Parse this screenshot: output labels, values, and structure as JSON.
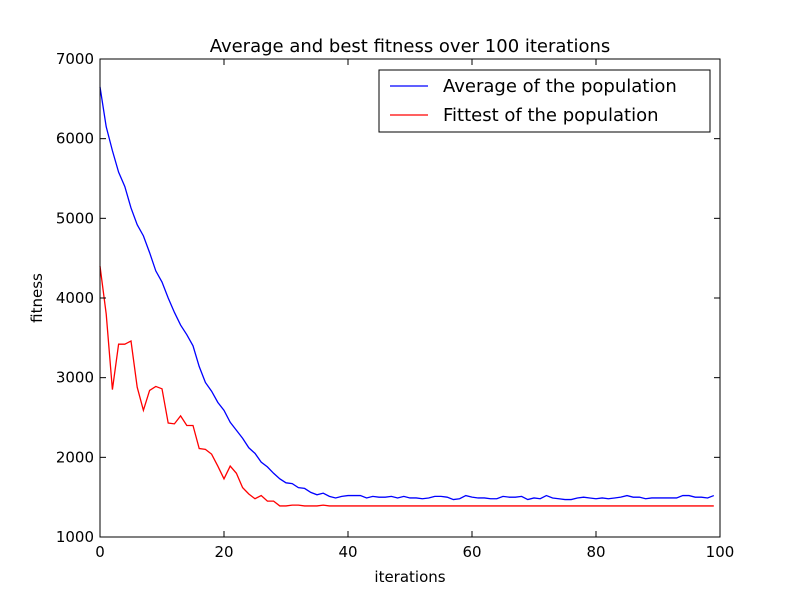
{
  "chart_data": {
    "type": "line",
    "title": "Average and best fitness over 100 iterations",
    "xlabel": "iterations",
    "ylabel": "fitness",
    "xlim": [
      0,
      100
    ],
    "ylim": [
      1000,
      7000
    ],
    "xticks": [
      0,
      20,
      40,
      60,
      80,
      100
    ],
    "yticks": [
      1000,
      2000,
      3000,
      4000,
      5000,
      6000,
      7000
    ],
    "grid": false,
    "legend_position": "top-right",
    "series": [
      {
        "name": "Average of the population",
        "color": "#0000ff",
        "x": [
          0,
          1,
          2,
          3,
          4,
          5,
          6,
          7,
          8,
          9,
          10,
          11,
          12,
          13,
          14,
          15,
          16,
          17,
          18,
          19,
          20,
          21,
          22,
          23,
          24,
          25,
          26,
          27,
          28,
          29,
          30,
          31,
          32,
          33,
          34,
          35,
          36,
          37,
          38,
          39,
          40,
          41,
          42,
          43,
          44,
          45,
          46,
          47,
          48,
          49,
          50,
          51,
          52,
          53,
          54,
          55,
          56,
          57,
          58,
          59,
          60,
          61,
          62,
          63,
          64,
          65,
          66,
          67,
          68,
          69,
          70,
          71,
          72,
          73,
          74,
          75,
          76,
          77,
          78,
          79,
          80,
          81,
          82,
          83,
          84,
          85,
          86,
          87,
          88,
          89,
          90,
          91,
          92,
          93,
          94,
          95,
          96,
          97,
          98,
          99
        ],
        "values": [
          6650,
          6150,
          5850,
          5580,
          5400,
          5130,
          4920,
          4780,
          4570,
          4340,
          4200,
          4000,
          3820,
          3660,
          3540,
          3400,
          3140,
          2940,
          2830,
          2690,
          2590,
          2440,
          2340,
          2240,
          2120,
          2050,
          1940,
          1880,
          1800,
          1730,
          1680,
          1670,
          1620,
          1610,
          1560,
          1530,
          1550,
          1510,
          1490,
          1510,
          1520,
          1520,
          1520,
          1490,
          1510,
          1500,
          1500,
          1510,
          1490,
          1510,
          1490,
          1490,
          1480,
          1490,
          1510,
          1510,
          1500,
          1470,
          1480,
          1520,
          1500,
          1490,
          1490,
          1480,
          1480,
          1510,
          1500,
          1500,
          1510,
          1470,
          1490,
          1480,
          1520,
          1490,
          1480,
          1470,
          1470,
          1490,
          1500,
          1490,
          1480,
          1490,
          1480,
          1490,
          1500,
          1520,
          1500,
          1500,
          1480,
          1490,
          1490,
          1490,
          1490,
          1490,
          1520,
          1520,
          1500,
          1500,
          1490,
          1520
        ]
      },
      {
        "name": "Fittest of the population",
        "color": "#ff0000",
        "x": [
          0,
          1,
          2,
          3,
          4,
          5,
          6,
          7,
          8,
          9,
          10,
          11,
          12,
          13,
          14,
          15,
          16,
          17,
          18,
          19,
          20,
          21,
          22,
          23,
          24,
          25,
          26,
          27,
          28,
          29,
          30,
          31,
          32,
          33,
          34,
          35,
          36,
          37,
          38,
          39,
          40,
          41,
          42,
          43,
          44,
          45,
          46,
          47,
          48,
          49,
          50,
          51,
          52,
          53,
          54,
          55,
          56,
          57,
          58,
          59,
          60,
          61,
          62,
          63,
          64,
          65,
          66,
          67,
          68,
          69,
          70,
          71,
          72,
          73,
          74,
          75,
          76,
          77,
          78,
          79,
          80,
          81,
          82,
          83,
          84,
          85,
          86,
          87,
          88,
          89,
          90,
          91,
          92,
          93,
          94,
          95,
          96,
          97,
          98,
          99
        ],
        "values": [
          4400,
          3800,
          2850,
          3420,
          3420,
          3460,
          2880,
          2590,
          2840,
          2890,
          2860,
          2430,
          2420,
          2520,
          2400,
          2400,
          2110,
          2100,
          2040,
          1890,
          1730,
          1890,
          1800,
          1620,
          1540,
          1480,
          1520,
          1450,
          1450,
          1390,
          1390,
          1400,
          1400,
          1390,
          1390,
          1390,
          1400,
          1390,
          1390,
          1390,
          1390,
          1390,
          1390,
          1390,
          1390,
          1390,
          1390,
          1390,
          1390,
          1390,
          1390,
          1390,
          1390,
          1390,
          1390,
          1390,
          1390,
          1390,
          1390,
          1390,
          1390,
          1390,
          1390,
          1390,
          1390,
          1390,
          1390,
          1390,
          1390,
          1390,
          1390,
          1390,
          1390,
          1390,
          1390,
          1390,
          1390,
          1390,
          1390,
          1390,
          1390,
          1390,
          1390,
          1390,
          1390,
          1390,
          1390,
          1390,
          1390,
          1390,
          1390,
          1390,
          1390,
          1390,
          1390,
          1390,
          1390,
          1390,
          1390,
          1390
        ]
      }
    ]
  }
}
